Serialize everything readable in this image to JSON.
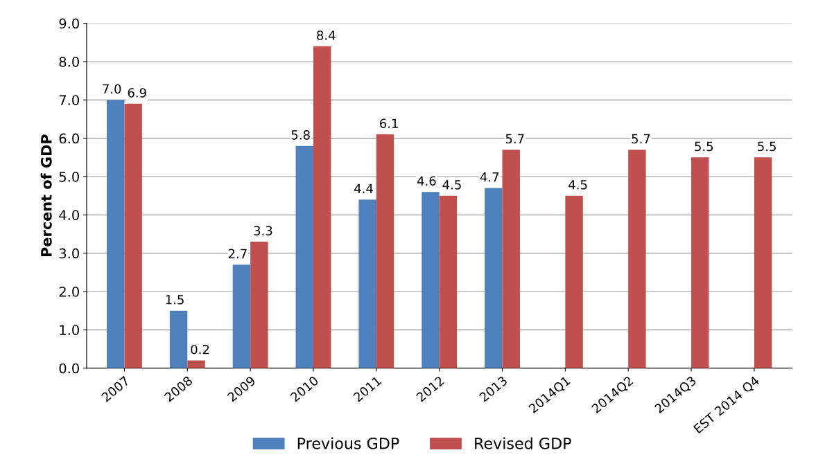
{
  "chart_data": {
    "type": "bar",
    "ylabel": "Percent of GDP",
    "categories": [
      "2007",
      "2008",
      "2009",
      "2010",
      "2011",
      "2012",
      "2013",
      "2014Q1",
      "2014Q2",
      "2014Q3",
      "EST 2014 Q4"
    ],
    "series": [
      {
        "name": "Previous GDP",
        "color": "#4f81bd",
        "values": [
          7.0,
          1.5,
          2.7,
          5.8,
          4.4,
          4.6,
          4.7,
          null,
          null,
          null,
          null
        ],
        "value_labels": [
          "7.0",
          "1.5",
          "2.7",
          "5.8",
          "4.4",
          "4.6",
          "4.7",
          null,
          null,
          null,
          null
        ]
      },
      {
        "name": "Revised GDP",
        "color": "#c0504d",
        "values": [
          6.9,
          0.2,
          3.3,
          8.4,
          6.1,
          4.5,
          5.7,
          4.5,
          5.7,
          5.5,
          5.5
        ],
        "value_labels": [
          "6.9",
          "0.2",
          "3.3",
          "8.4",
          "6.1",
          "4.5",
          "5.7",
          "4.5",
          "5.7",
          "5.5",
          "5.5"
        ]
      }
    ],
    "ylim": [
      0,
      9
    ],
    "yticks": [
      {
        "value": 0,
        "label": "0.0"
      },
      {
        "value": 1,
        "label": "1.0"
      },
      {
        "value": 2,
        "label": "2.0"
      },
      {
        "value": 3,
        "label": "3.0"
      },
      {
        "value": 4,
        "label": "4.0"
      },
      {
        "value": 5,
        "label": "5.0"
      },
      {
        "value": 6,
        "label": "6.0"
      },
      {
        "value": 7,
        "label": "7.0"
      },
      {
        "value": 8,
        "label": "8.0"
      },
      {
        "value": 9,
        "label": "9.0"
      }
    ],
    "grid": "y",
    "legend": "bottom"
  }
}
